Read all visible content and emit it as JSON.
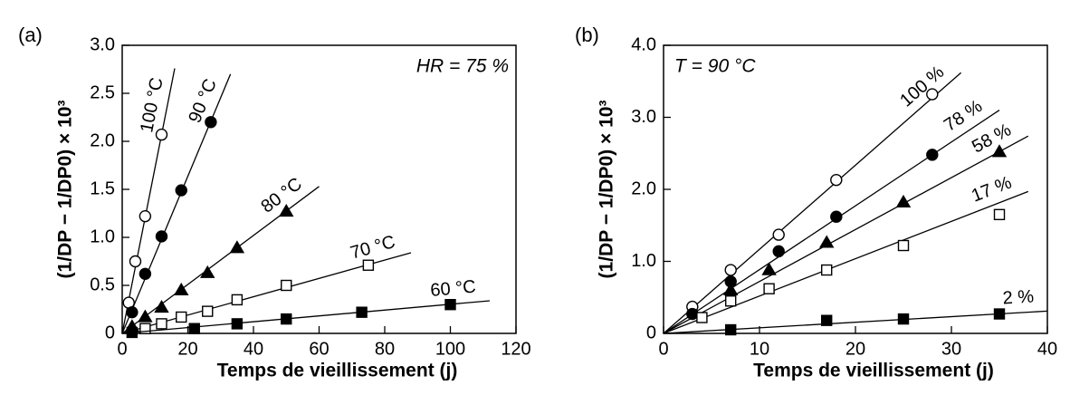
{
  "chart_data": [
    {
      "type": "scatter",
      "panel": "(a)",
      "annotation": "HR = 75 %",
      "xlabel": "Temps de vieillissement (j)",
      "ylabel": "(1/DP − 1/DP0) × 10³",
      "xlim": [
        0,
        120
      ],
      "ylim": [
        0,
        3
      ],
      "xticks": [
        0,
        20,
        40,
        60,
        80,
        100,
        120
      ],
      "yticks": [
        0,
        0.5,
        {
          "value": 1,
          "label": "1.0"
        },
        1.5,
        {
          "value": 2,
          "label": "2.0"
        },
        2.5,
        {
          "value": 3,
          "label": "3.0"
        }
      ],
      "series": [
        {
          "name": "100 °C",
          "marker": "circle-open",
          "color": "#000",
          "x": [
            2,
            4,
            7,
            12
          ],
          "values": [
            0.32,
            0.75,
            1.22,
            2.07
          ],
          "fit": {
            "x": [
              0,
              16
            ],
            "y": [
              0,
              2.76
            ]
          }
        },
        {
          "name": "90 °C",
          "marker": "circle-filled",
          "color": "#000",
          "x": [
            3,
            7,
            12,
            18,
            27
          ],
          "values": [
            0.22,
            0.62,
            1.01,
            1.49,
            2.2
          ],
          "fit": {
            "x": [
              0,
              33
            ],
            "y": [
              0,
              2.7
            ]
          }
        },
        {
          "name": "80 °C",
          "marker": "triangle-filled",
          "color": "#000",
          "x": [
            3,
            7,
            12,
            18,
            26,
            35,
            50
          ],
          "values": [
            0.07,
            0.17,
            0.27,
            0.45,
            0.63,
            0.89,
            1.27
          ],
          "fit": {
            "x": [
              0,
              60
            ],
            "y": [
              0,
              1.53
            ]
          }
        },
        {
          "name": "70 °C",
          "marker": "square-open",
          "color": "#000",
          "x": [
            7,
            12,
            18,
            26,
            35,
            50,
            75
          ],
          "values": [
            0.05,
            0.1,
            0.17,
            0.23,
            0.35,
            0.5,
            0.71
          ],
          "fit": {
            "x": [
              0,
              88
            ],
            "y": [
              0,
              0.84
            ]
          }
        },
        {
          "name": "60 °C",
          "marker": "square-filled",
          "color": "#000",
          "x": [
            3,
            22,
            35,
            50,
            73,
            100
          ],
          "values": [
            0.01,
            0.05,
            0.1,
            0.15,
            0.22,
            0.3
          ],
          "fit": {
            "x": [
              0,
              112
            ],
            "y": [
              0,
              0.34
            ]
          }
        }
      ]
    },
    {
      "type": "scatter",
      "panel": "(b)",
      "annotation": "T = 90 °C",
      "xlabel": "Temps de vieillissement (j)",
      "ylabel": "(1/DP − 1/DP0) × 10³",
      "xlim": [
        0,
        40
      ],
      "ylim": [
        0,
        4
      ],
      "xticks": [
        0,
        10,
        20,
        30,
        40
      ],
      "yticks": [
        0,
        {
          "value": 1,
          "label": "1.0"
        },
        {
          "value": 2,
          "label": "2.0"
        },
        {
          "value": 3,
          "label": "3.0"
        },
        {
          "value": 4,
          "label": "4.0"
        }
      ],
      "series": [
        {
          "name": "100 %",
          "marker": "circle-open",
          "color": "#000",
          "x": [
            3,
            7,
            12,
            18,
            28
          ],
          "values": [
            0.37,
            0.88,
            1.37,
            2.13,
            3.32
          ],
          "fit": {
            "x": [
              0,
              31
            ],
            "y": [
              0,
              3.62
            ]
          }
        },
        {
          "name": "78 %",
          "marker": "circle-filled",
          "color": "#000",
          "x": [
            3,
            7,
            12,
            18,
            28
          ],
          "values": [
            0.27,
            0.72,
            1.14,
            1.62,
            2.48
          ],
          "fit": {
            "x": [
              0,
              35
            ],
            "y": [
              0,
              3.1
            ]
          }
        },
        {
          "name": "58 %",
          "marker": "triangle-filled",
          "color": "#000",
          "x": [
            7,
            11,
            17,
            25,
            35
          ],
          "values": [
            0.6,
            0.88,
            1.26,
            1.82,
            2.52
          ],
          "fit": {
            "x": [
              0,
              38
            ],
            "y": [
              0,
              2.74
            ]
          }
        },
        {
          "name": "17 %",
          "marker": "square-open",
          "color": "#000",
          "x": [
            4,
            7,
            11,
            17,
            25,
            35
          ],
          "values": [
            0.22,
            0.45,
            0.62,
            0.88,
            1.22,
            1.65
          ],
          "fit": {
            "x": [
              0,
              38
            ],
            "y": [
              0,
              1.97
            ]
          }
        },
        {
          "name": "2 %",
          "marker": "square-filled",
          "color": "#000",
          "x": [
            7,
            17,
            25,
            35
          ],
          "values": [
            0.05,
            0.18,
            0.2,
            0.27
          ],
          "fit": {
            "x": [
              0,
              40
            ],
            "y": [
              0,
              0.31
            ]
          }
        }
      ]
    }
  ]
}
